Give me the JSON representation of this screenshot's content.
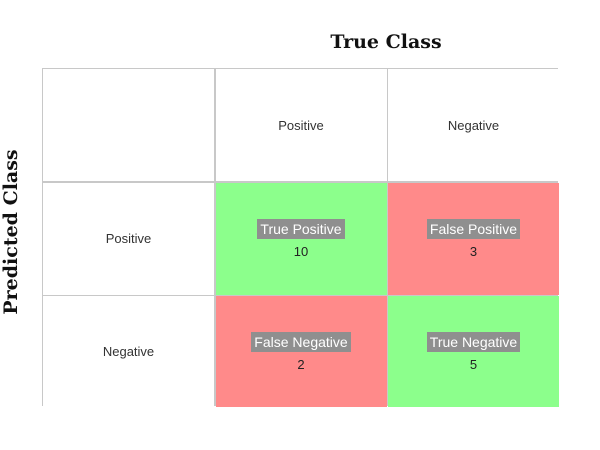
{
  "titles": {
    "true_class": "True Class",
    "predicted_class": "Predicted Class"
  },
  "columns": [
    "Positive",
    "Negative"
  ],
  "rows": [
    "Positive",
    "Negative"
  ],
  "cells": [
    [
      {
        "label": "True Positive",
        "value": "10"
      },
      {
        "label": "False Positive",
        "value": "3"
      }
    ],
    [
      {
        "label": "False Negative",
        "value": "2"
      },
      {
        "label": "True Negative",
        "value": "5"
      }
    ]
  ],
  "colors": {
    "correct": "#8cff8c",
    "wrong": "#ff8a8a",
    "tag_background": "#8f8f8f",
    "grid": "#c8c8c8"
  }
}
